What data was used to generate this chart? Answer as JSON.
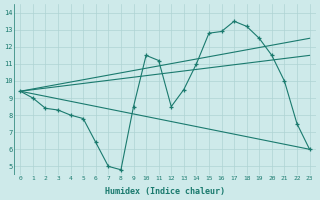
{
  "xlabel": "Humidex (Indice chaleur)",
  "background_color": "#ceeaea",
  "line_color": "#1a7a6e",
  "xlim": [
    -0.5,
    23.5
  ],
  "ylim": [
    4.5,
    14.5
  ],
  "yticks": [
    5,
    6,
    7,
    8,
    9,
    10,
    11,
    12,
    13,
    14
  ],
  "xticks": [
    0,
    1,
    2,
    3,
    4,
    5,
    6,
    7,
    8,
    9,
    10,
    11,
    12,
    13,
    14,
    15,
    16,
    17,
    18,
    19,
    20,
    21,
    22,
    23
  ],
  "series1_x": [
    0,
    1,
    2,
    3,
    4,
    5,
    6,
    7,
    8,
    9,
    10,
    11,
    12,
    13,
    14,
    15,
    16,
    17,
    18,
    19,
    20,
    21,
    22,
    23
  ],
  "series1_y": [
    9.4,
    9.0,
    8.4,
    8.3,
    8.0,
    7.8,
    6.4,
    5.0,
    4.8,
    8.5,
    11.5,
    11.2,
    8.5,
    9.5,
    11.0,
    12.8,
    12.9,
    13.5,
    13.2,
    12.5,
    11.5,
    10.0,
    7.5,
    6.0
  ],
  "series2_x": [
    0,
    23
  ],
  "series2_y": [
    9.4,
    6.0
  ],
  "series3_x": [
    0,
    23
  ],
  "series3_y": [
    9.4,
    12.5
  ],
  "series4_x": [
    0,
    23
  ],
  "series4_y": [
    9.4,
    11.5
  ],
  "grid_color": "#afd4d4",
  "font_color": "#1a7a6e"
}
